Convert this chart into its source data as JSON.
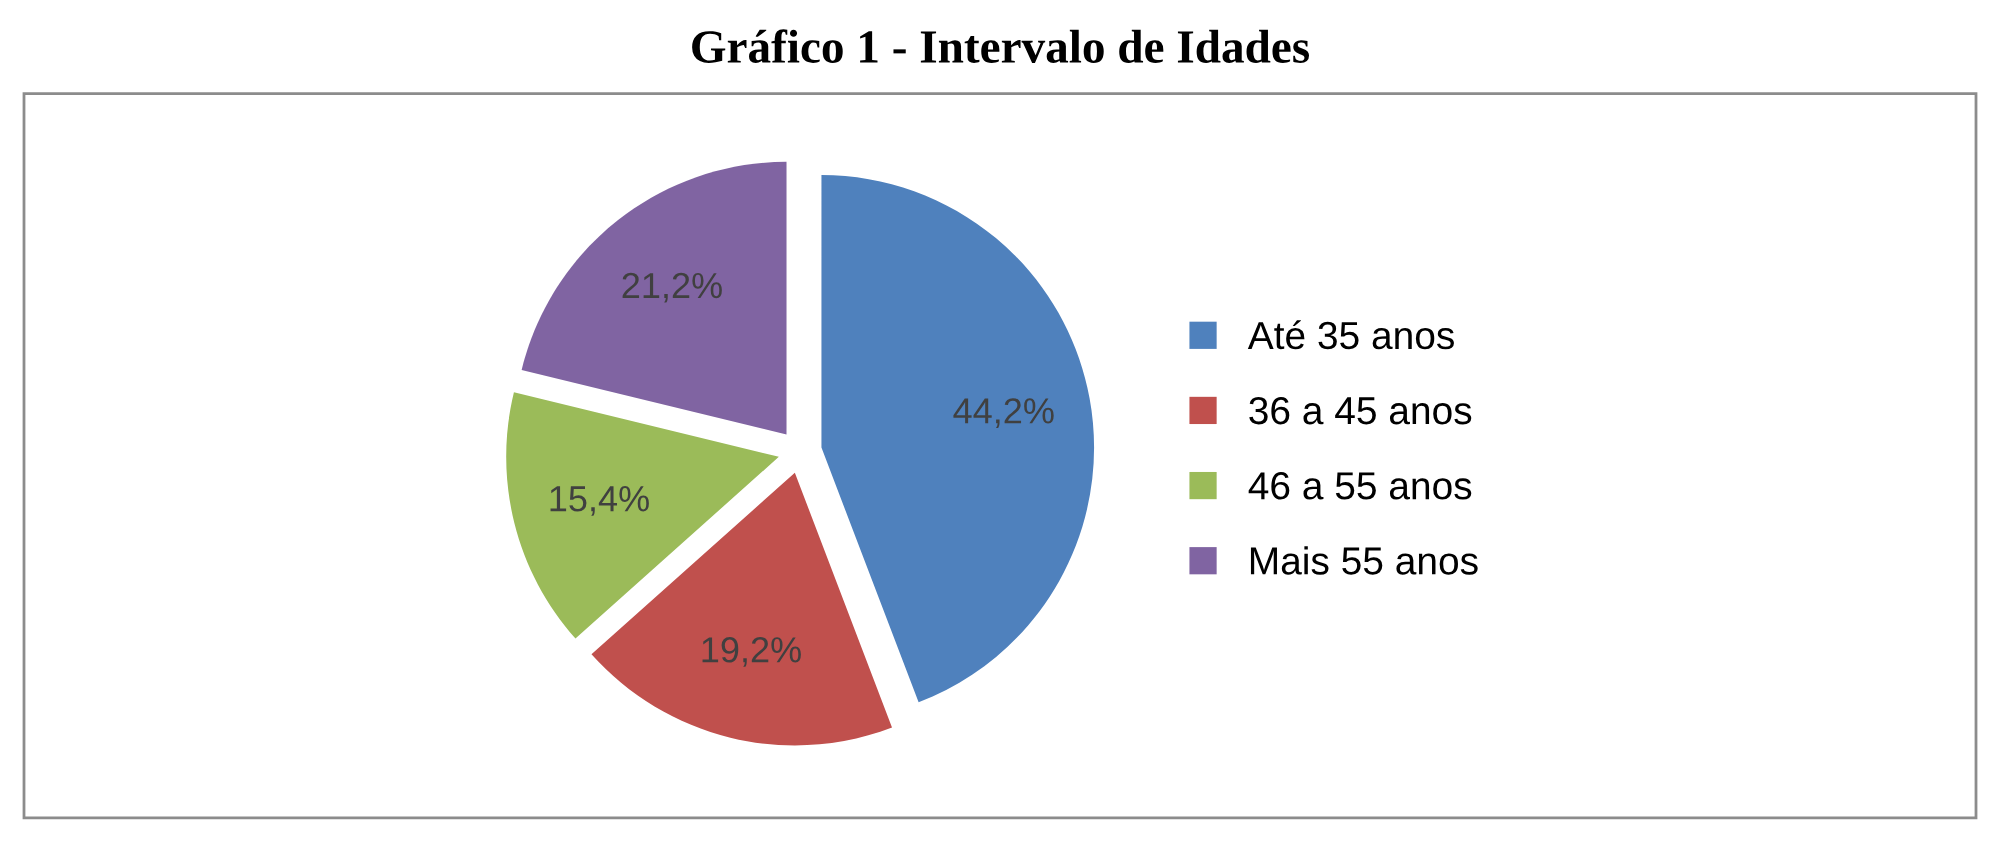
{
  "chart_data": {
    "type": "pie",
    "title": "Gráfico 1 - Intervalo de Idades",
    "categories": [
      "Até 35 anos",
      "36 a 45 anos",
      "46 a 55 anos",
      "Mais 55 anos"
    ],
    "values": [
      44.2,
      19.2,
      15.4,
      21.2
    ],
    "colors": [
      "#4f81bd",
      "#c0504d",
      "#9bbb59",
      "#8064a2"
    ],
    "value_labels": [
      "44,2%",
      "19,2%",
      "15,4%",
      "21,2%"
    ],
    "legend": "right"
  }
}
